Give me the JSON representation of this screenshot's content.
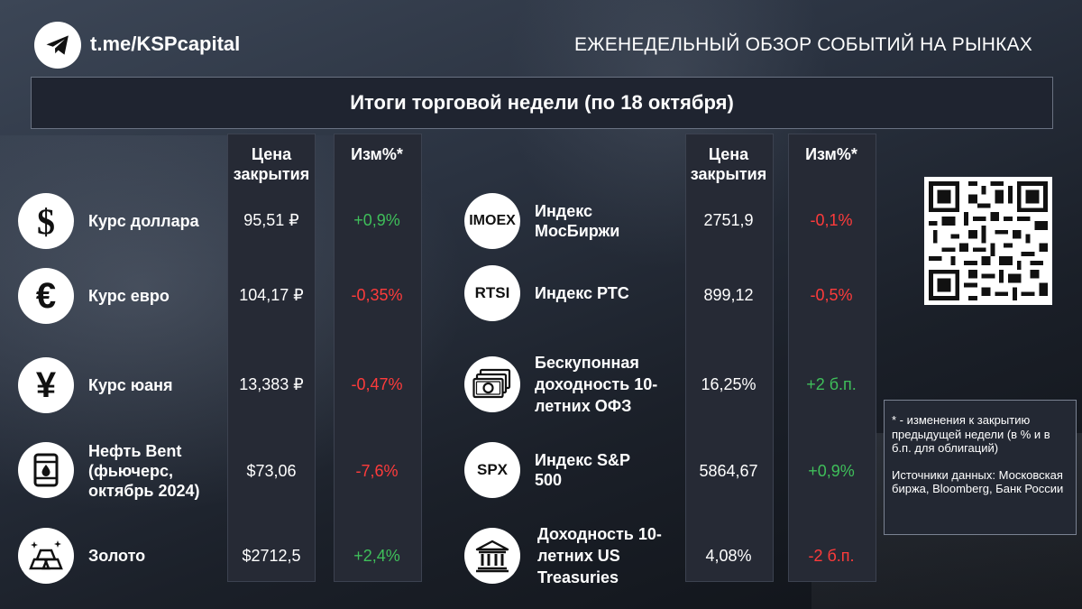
{
  "header": {
    "channel_link": "t.me/KSPcapital",
    "title": "ЕЖЕНЕДЕЛЬНЫЙ ОБЗОР СОБЫТИЙ НА РЫНКАХ",
    "banner": "Итоги торговой недели (по 18 октября)"
  },
  "columns": {
    "price_header": "Цена закрытия",
    "change_header": "Изм%*"
  },
  "left_rows": [
    {
      "icon": "dollar-icon",
      "label": "Курс доллара",
      "price": "95,51 ₽",
      "change": "+0,9%"
    },
    {
      "icon": "euro-icon",
      "label": "Курс евро",
      "price": "104,17 ₽",
      "change": "-0,35%"
    },
    {
      "icon": "yuan-icon",
      "label": "Курс юаня",
      "price": "13,383 ₽",
      "change": "-0,47%"
    },
    {
      "icon": "oil-barrel-icon",
      "label": "Нефть Bent (фьючерс, октябрь 2024)",
      "price": "$73,06",
      "change": "-7,6%"
    },
    {
      "icon": "gold-bars-icon",
      "label": "Золото",
      "price": "$2712,5",
      "change": "+2,4%"
    }
  ],
  "right_rows": [
    {
      "icon_text": "IMOEX",
      "label": "Индекс МосБиржи",
      "price": "2751,9",
      "change": "-0,1%"
    },
    {
      "icon_text": "RTSI",
      "label": "Индекс РТС",
      "price": "899,12",
      "change": "-0,5%"
    },
    {
      "icon": "banknotes-icon",
      "label": "Бескупонная доходность 10-летних ОФЗ",
      "price": "16,25%",
      "change": "+2 б.п."
    },
    {
      "icon_text": "SPX",
      "label": "Индекс S&P 500",
      "price": "5864,67",
      "change": "+0,9%"
    },
    {
      "icon": "bank-building-icon",
      "label": "Доходность 10-летних US Treasuries",
      "price": "4,08%",
      "change": "-2 б.п."
    }
  ],
  "note": {
    "footnote": "* - изменения к закрытию предыдущей недели (в % и в б.п. для облигаций)",
    "sources": "Источники данных: Московская биржа, Bloomberg, Банк России"
  },
  "colors": {
    "positive": "#3fbf5a",
    "negative": "#ff3b3b",
    "column_bg": "#262a35"
  },
  "icons": {
    "telegram": "telegram-icon",
    "qr": "qr-code"
  }
}
